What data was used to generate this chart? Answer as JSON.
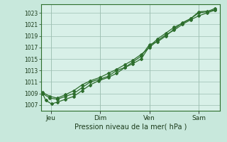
{
  "title": "",
  "xlabel": "Pression niveau de la mer( hPa )",
  "ylabel": "",
  "bg_color": "#c8e8dc",
  "plot_bg_color": "#d8f0e8",
  "grid_color": "#9dbfb2",
  "line_color": "#2d6e2d",
  "ylim": [
    1006.0,
    1024.5
  ],
  "yticks": [
    1007,
    1009,
    1011,
    1013,
    1015,
    1017,
    1019,
    1021,
    1023
  ],
  "xtick_labels": [
    "Jeu",
    "Dim",
    "Ven",
    "Sam"
  ],
  "xtick_positions": [
    0.5,
    3.5,
    6.5,
    9.5
  ],
  "xlim": [
    -0.1,
    10.8
  ],
  "series1_x": [
    0.0,
    0.2,
    0.55,
    0.9,
    1.4,
    1.9,
    2.4,
    2.9,
    3.4,
    4.0,
    4.5,
    5.0,
    5.5,
    6.0,
    6.5,
    7.0,
    7.5,
    8.0,
    8.5,
    9.0,
    9.5,
    10.0,
    10.5
  ],
  "series1_y": [
    1009.0,
    1007.8,
    1007.2,
    1007.5,
    1008.0,
    1008.5,
    1009.5,
    1010.5,
    1011.2,
    1011.8,
    1012.5,
    1013.5,
    1014.2,
    1015.0,
    1017.2,
    1018.5,
    1019.5,
    1020.5,
    1021.2,
    1022.0,
    1023.2,
    1023.3,
    1023.5
  ],
  "series2_x": [
    0.0,
    0.45,
    0.9,
    1.4,
    1.9,
    2.4,
    2.9,
    3.5,
    4.0,
    4.5,
    5.0,
    5.5,
    6.0,
    6.5,
    7.0,
    7.5,
    8.0,
    8.5,
    9.0,
    9.5,
    10.0,
    10.5
  ],
  "series2_y": [
    1009.0,
    1008.2,
    1008.0,
    1008.5,
    1009.0,
    1010.0,
    1011.0,
    1011.5,
    1012.0,
    1013.0,
    1013.5,
    1014.5,
    1015.5,
    1017.5,
    1018.0,
    1019.0,
    1020.2,
    1021.3,
    1022.0,
    1023.0,
    1023.2,
    1023.8
  ],
  "series3_x": [
    0.0,
    0.45,
    0.9,
    1.4,
    1.9,
    2.4,
    2.9,
    3.5,
    4.0,
    4.5,
    5.0,
    5.5,
    6.0,
    6.5,
    7.0,
    7.5,
    8.0,
    8.5,
    9.0,
    9.5,
    10.0,
    10.5
  ],
  "series3_y": [
    1009.2,
    1008.5,
    1008.2,
    1008.8,
    1009.5,
    1010.5,
    1011.2,
    1011.8,
    1012.5,
    1013.2,
    1014.0,
    1014.8,
    1015.8,
    1017.0,
    1018.2,
    1019.2,
    1020.0,
    1021.0,
    1021.8,
    1022.5,
    1023.0,
    1023.5
  ]
}
